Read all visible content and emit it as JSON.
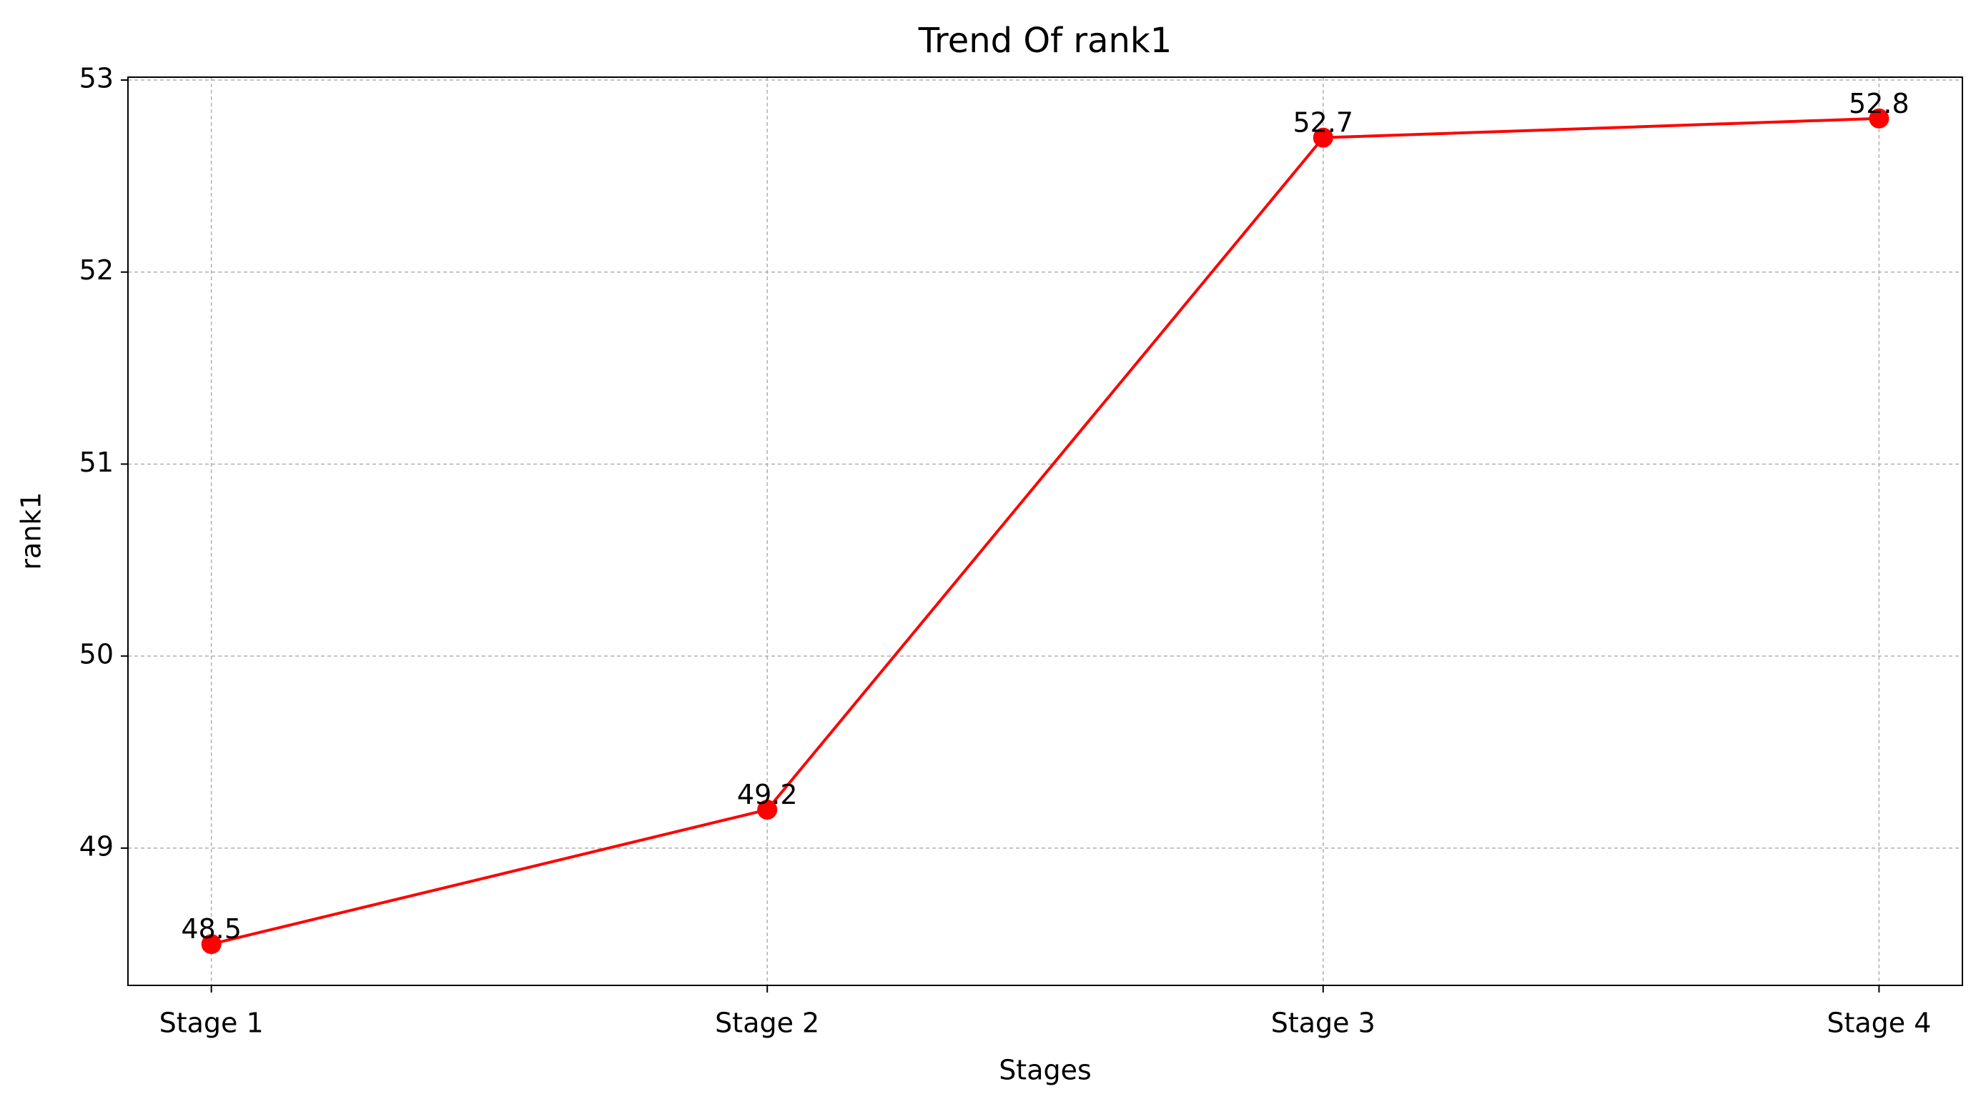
{
  "chart_data": {
    "type": "line",
    "title": "Trend Of rank1",
    "x_label": "Stages",
    "y_label": "rank1",
    "categories": [
      "Stage 1",
      "Stage 2",
      "Stage 3",
      "Stage 4"
    ],
    "values": [
      48.5,
      49.2,
      52.7,
      52.8
    ],
    "color": "#ff0000",
    "ylim": [
      48.285,
      53.015
    ],
    "yticks": [
      49,
      50,
      51,
      52,
      53
    ],
    "grid": true
  }
}
